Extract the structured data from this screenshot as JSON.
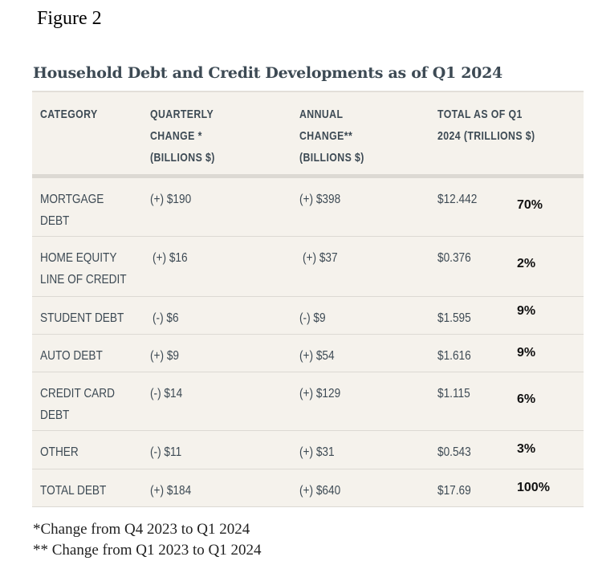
{
  "figure_label": "Figure 2",
  "title": "Household Debt and Credit Developments as of Q1 2024",
  "headers": [
    "CATEGORY",
    "QUARTERLY\nCHANGE *\n(BILLIONS $)",
    "ANNUAL\nCHANGE**\n(BILLIONS $)",
    "TOTAL AS OF Q1\n2024 (TRILLIONS $)"
  ],
  "rows": [
    {
      "category": "MORTGAGE\nDEBT",
      "quarterly": "(+) $190",
      "annual": "(+) $398",
      "total": "$12.442",
      "share": "70%"
    },
    {
      "category": "HOME EQUITY\nLINE OF CREDIT",
      "quarterly": "(+) $16",
      "annual": "(+) $37",
      "total": "$0.376",
      "share": "2%"
    },
    {
      "category": "STUDENT DEBT",
      "quarterly": "(-) $6",
      "annual": "(-) $9",
      "total": "$1.595",
      "share": "9%"
    },
    {
      "category": "AUTO DEBT",
      "quarterly": "(+) $9",
      "annual": "(+) $54",
      "total": "$1.616",
      "share": "9%"
    },
    {
      "category": "CREDIT CARD\nDEBT",
      "quarterly": "(-) $14",
      "annual": "(+) $129",
      "total": "$1.115",
      "share": "6%"
    },
    {
      "category": "OTHER",
      "quarterly": "(-) $11",
      "annual": "(+) $31",
      "total": "$0.543",
      "share": "3%"
    },
    {
      "category": "TOTAL DEBT",
      "quarterly": "(+) $184",
      "annual": "(+) $640",
      "total": "$17.69",
      "share": "100%"
    }
  ],
  "notes": [
    "*Change from Q4 2023 to Q1 2024",
    "** Change from Q1 2023 to Q1 2024"
  ]
}
